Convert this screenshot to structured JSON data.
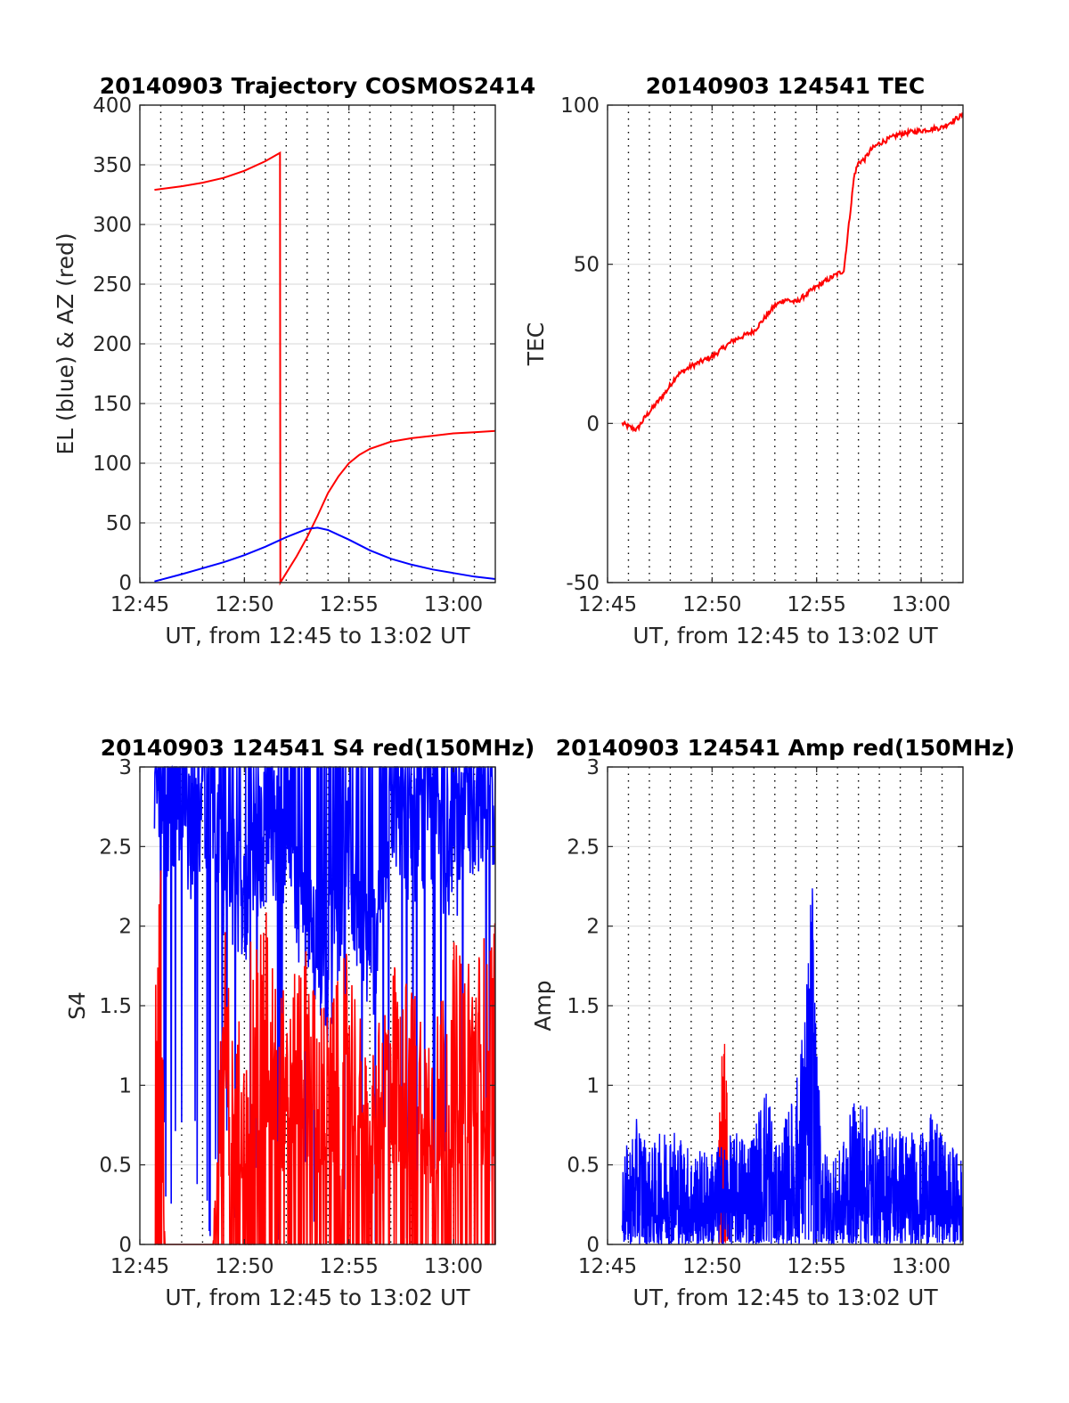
{
  "chart_data": [
    {
      "type": "line",
      "title": "20140903 Trajectory COSMOS2414",
      "xlabel": "UT, from 12:45 to 13:02 UT",
      "ylabel": "EL (blue) & AZ (red)",
      "x_unit": "minutes after 12:45 UT",
      "xlim": [
        0,
        17
      ],
      "ylim": [
        0,
        400
      ],
      "x_ticks": [
        0,
        5,
        10,
        15
      ],
      "x_tick_labels": [
        "12:45",
        "12:50",
        "12:55",
        "13:00"
      ],
      "y_ticks": [
        0,
        50,
        100,
        150,
        200,
        250,
        300,
        350,
        400
      ],
      "y_tick_labels": [
        "0",
        "50",
        "100",
        "150",
        "200",
        "250",
        "300",
        "350",
        "400"
      ],
      "grid": "on",
      "series": [
        {
          "color": "#ff0000",
          "x": [
            0.7,
            2,
            3,
            4,
            5,
            6,
            6.7,
            6.72,
            7,
            7.5,
            8,
            8.5,
            9,
            9.5,
            10,
            10.5,
            11,
            12,
            13,
            14,
            15,
            16,
            17
          ],
          "y": [
            329,
            332,
            335,
            339,
            345,
            353,
            360,
            0,
            8,
            22,
            38,
            56,
            75,
            89,
            100,
            107,
            112,
            118,
            121,
            123,
            125,
            126,
            127
          ]
        },
        {
          "color": "#0000ff",
          "x": [
            0.7,
            2,
            3,
            4,
            5,
            6,
            7,
            8,
            8.5,
            9,
            10,
            11,
            12,
            13,
            14,
            15,
            16,
            17
          ],
          "y": [
            1,
            7,
            12,
            17,
            23,
            30,
            38,
            45,
            46,
            44,
            36,
            27,
            20,
            15,
            11,
            8,
            5,
            3
          ]
        }
      ]
    },
    {
      "type": "line",
      "title": "20140903 124541 TEC",
      "xlabel": "UT, from 12:45 to 13:02 UT",
      "ylabel": "TEC",
      "x_unit": "minutes after 12:45 UT",
      "xlim": [
        0,
        17
      ],
      "ylim": [
        -50,
        100
      ],
      "x_ticks": [
        0,
        5,
        10,
        15
      ],
      "x_tick_labels": [
        "12:45",
        "12:50",
        "12:55",
        "13:00"
      ],
      "y_ticks": [
        -50,
        0,
        50,
        100
      ],
      "y_tick_labels": [
        "-50",
        "0",
        "50",
        "100"
      ],
      "grid": "on",
      "series": [
        {
          "color": "#ff0000",
          "x": [
            0.7,
            1,
            1.4,
            1.8,
            2.3,
            2.8,
            3.3,
            4,
            5,
            6,
            7,
            8,
            8.5,
            9,
            10,
            11,
            11.3,
            11.8,
            12,
            12.3,
            12.6,
            13,
            14,
            15,
            16,
            17
          ],
          "y": [
            0,
            -1,
            -2,
            2,
            6,
            10,
            15,
            18,
            21,
            26,
            29,
            37,
            39,
            38,
            43,
            47,
            48,
            78,
            82,
            83,
            86,
            88,
            91,
            92,
            93,
            97
          ]
        }
      ]
    },
    {
      "type": "line",
      "title": "20140903 124541 S4 red(150MHz)",
      "xlabel": "UT, from 12:45 to 13:02 UT",
      "ylabel": "S4",
      "x_unit": "minutes after 12:45 UT",
      "xlim": [
        0,
        17
      ],
      "ylim": [
        0,
        3
      ],
      "x_ticks": [
        0,
        5,
        10,
        15
      ],
      "x_tick_labels": [
        "12:45",
        "12:50",
        "12:55",
        "13:00"
      ],
      "y_ticks": [
        0,
        0.5,
        1,
        1.5,
        2,
        2.5,
        3
      ],
      "y_tick_labels": [
        "0",
        "0.5",
        "1",
        "1.5",
        "2",
        "2.5",
        "3"
      ],
      "grid": "on",
      "series": [
        {
          "color": "#0000ff",
          "x": [
            0.7,
            1.5,
            2,
            2.5,
            3,
            4,
            5,
            6,
            7,
            8,
            9,
            10,
            11,
            12,
            13,
            14,
            15,
            16,
            17
          ],
          "y": [
            2.8,
            2.5,
            2.6,
            2.3,
            2.7,
            2.2,
            2.0,
            2.4,
            2.4,
            1.8,
            1.5,
            2.3,
            1.5,
            2.6,
            2.4,
            2.5,
            2.2,
            2.6,
            2.5
          ]
        },
        {
          "color": "#ff0000",
          "x": [
            0.7,
            1,
            1.2,
            1.5,
            2,
            3,
            3.5,
            4,
            4.5,
            5,
            6,
            7,
            8,
            9,
            10,
            11,
            12,
            13,
            14,
            15,
            16,
            17
          ],
          "y": [
            2.1,
            2.0,
            0,
            0,
            0,
            0,
            0,
            1.8,
            1.0,
            1.5,
            1.8,
            1.3,
            1.6,
            1.2,
            1.6,
            0.9,
            1.5,
            1.4,
            1.2,
            1.6,
            1.5,
            1.8
          ]
        }
      ]
    },
    {
      "type": "line",
      "title": "20140903 124541 Amp red(150MHz)",
      "xlabel": "UT, from 12:45 to 13:02 UT",
      "ylabel": "Amp",
      "x_unit": "minutes after 12:45 UT",
      "xlim": [
        0,
        17
      ],
      "ylim": [
        0,
        3
      ],
      "x_ticks": [
        0,
        5,
        10,
        15
      ],
      "x_tick_labels": [
        "12:45",
        "12:50",
        "12:55",
        "13:00"
      ],
      "y_ticks": [
        0,
        0.5,
        1,
        1.5,
        2,
        2.5,
        3
      ],
      "y_tick_labels": [
        "0",
        "0.5",
        "1",
        "1.5",
        "2",
        "2.5",
        "3"
      ],
      "grid": "on",
      "series": [
        {
          "color": "#ff0000",
          "x": [
            5.3,
            5.4,
            5.5,
            5.6,
            5.7,
            5.8
          ],
          "y": [
            0.6,
            1.0,
            1.35,
            1.45,
            1.0,
            0.55
          ]
        },
        {
          "color": "#0000ff",
          "x": [
            0.7,
            1.5,
            2,
            3,
            4,
            5,
            6,
            7,
            7.7,
            8,
            9,
            9.5,
            9.8,
            10,
            10.4,
            11,
            12,
            13,
            13.3,
            14,
            15,
            15.5,
            16,
            17
          ],
          "y": [
            0.55,
            0.83,
            0.6,
            0.8,
            0.6,
            0.6,
            0.7,
            0.75,
            1.12,
            0.6,
            1.0,
            1.63,
            2.5,
            1.2,
            0.6,
            0.55,
            1.0,
            0.7,
            0.8,
            0.75,
            0.7,
            0.83,
            0.7,
            0.55
          ]
        }
      ]
    }
  ]
}
